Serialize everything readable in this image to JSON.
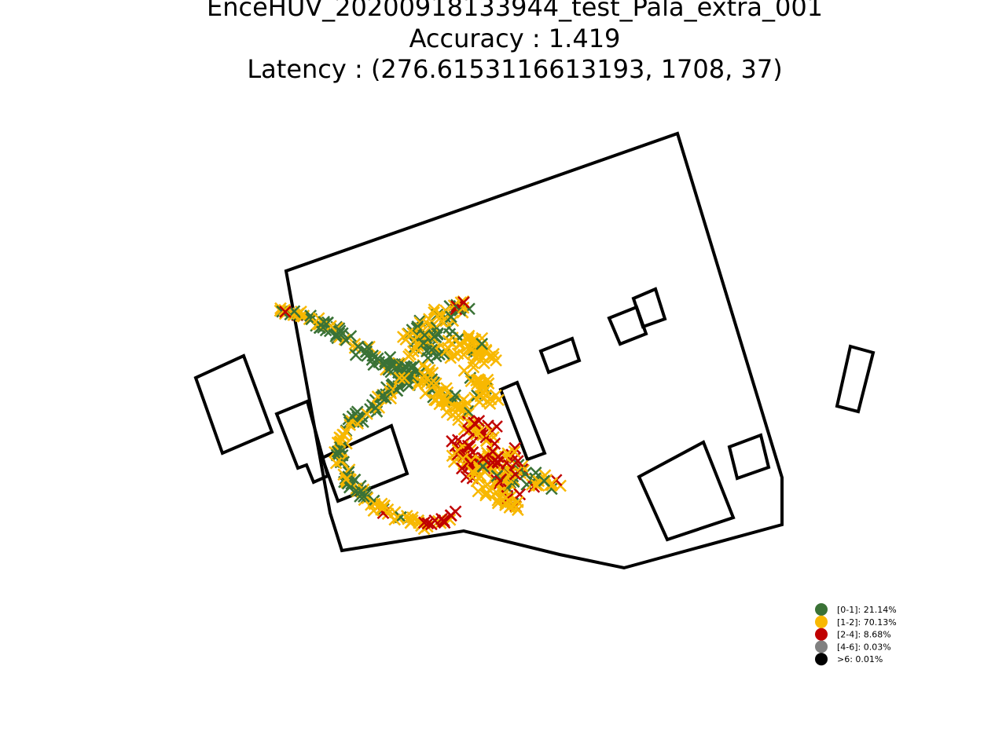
{
  "chart_data": {
    "type": "scatter",
    "title_lines": [
      "EnceHUV_20200918133944_test_Pala_extra_001",
      "Accuracy : 1.419",
      "Latency : (276.6153116613193, 1708, 37)"
    ],
    "legend_position": "lower-right",
    "legend": [
      {
        "label": "[0-1]: 21.14%",
        "color": "#3a7236"
      },
      {
        "label": "[1-2]: 70.13%",
        "color": "#f8b800"
      },
      {
        "label": "[2-4]: 8.68%",
        "color": "#c00000"
      },
      {
        "label": "[4-6]: 0.03%",
        "color": "#808080"
      },
      {
        "label": ">6: 0.01%",
        "color": "#000000"
      }
    ],
    "marker": "x",
    "outline_color": "#000000"
  }
}
